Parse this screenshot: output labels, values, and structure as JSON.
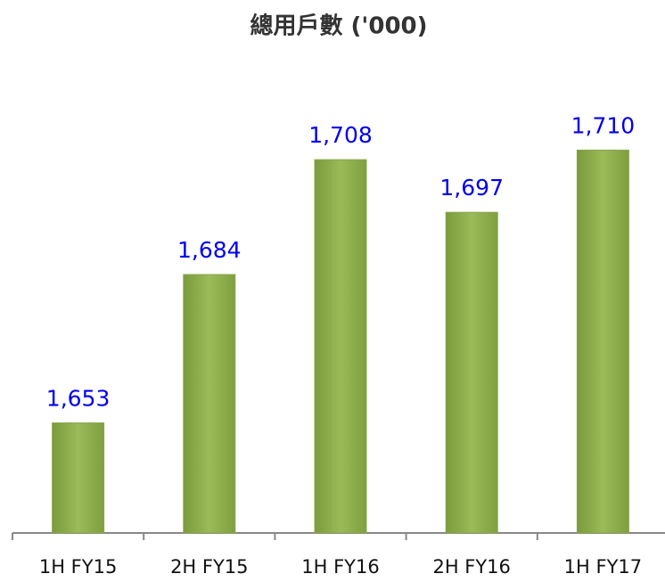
{
  "chart_data": {
    "type": "bar",
    "title": "總用戶數 ('000)",
    "categories": [
      "1H FY15",
      "2H FY15",
      "1H FY16",
      "2H FY16",
      "1H FY17"
    ],
    "values": [
      1653,
      1684,
      1708,
      1697,
      1710
    ],
    "value_labels": [
      "1,653",
      "1,684",
      "1,708",
      "1,697",
      "1,710"
    ],
    "color": "#9bbb59",
    "ylim": [
      1630,
      1730
    ]
  }
}
